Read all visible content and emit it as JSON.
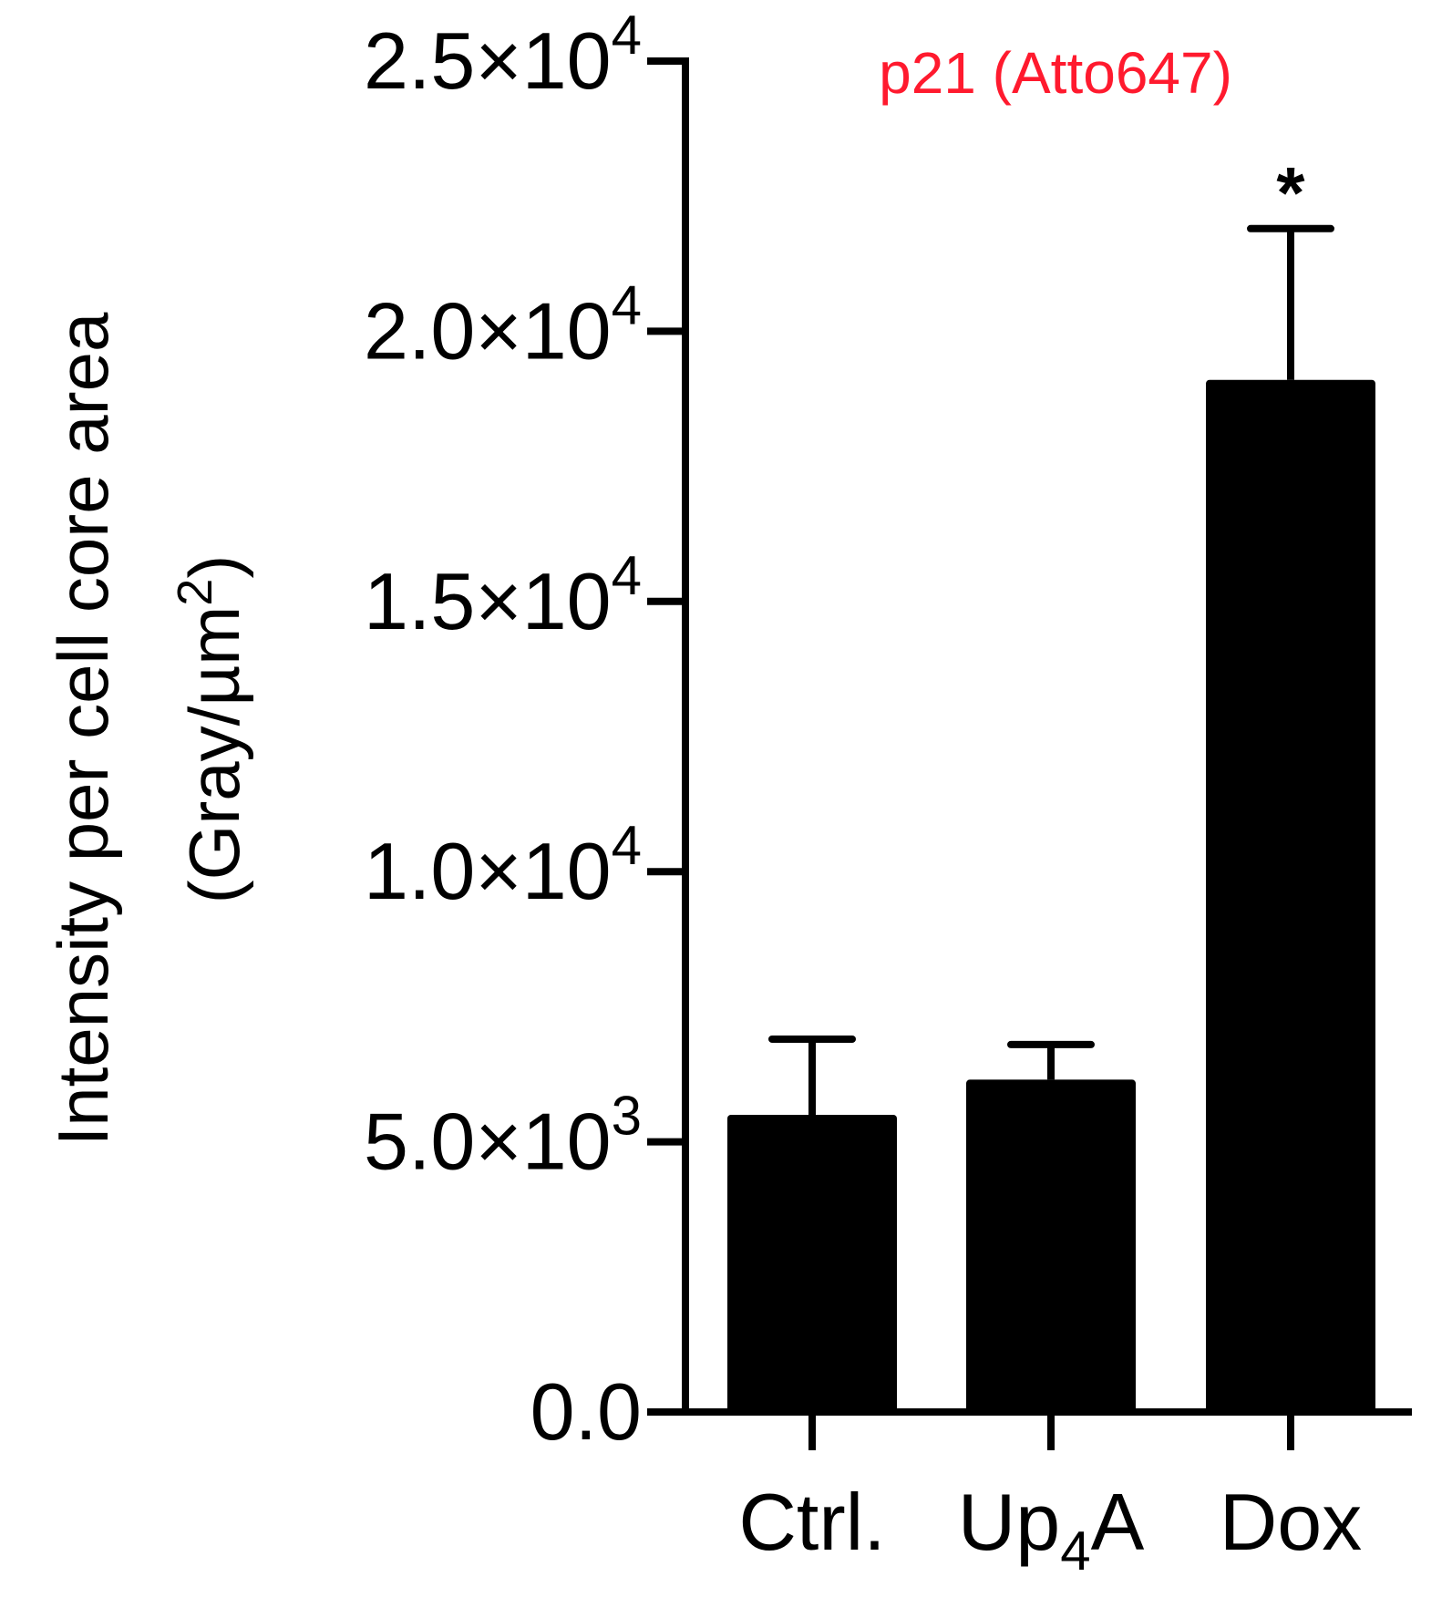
{
  "chart_data": {
    "type": "bar",
    "title": "p21 (Atto647)",
    "title_color": "#ff1a2e",
    "bar_color": "#000000",
    "categories": [
      {
        "base": "Ctrl.",
        "sub": "",
        "tail": ""
      },
      {
        "base": "Up",
        "sub": "4",
        "tail": "A"
      },
      {
        "base": "Dox",
        "sub": "",
        "tail": ""
      }
    ],
    "values": [
      5500,
      6150,
      19100
    ],
    "errors": [
      1400,
      650,
      2800
    ],
    "annotations": [
      "",
      "",
      "*"
    ],
    "ylim": [
      0,
      25000
    ],
    "yticks": [
      {
        "value": 0,
        "mant": "0.0",
        "exp": ""
      },
      {
        "value": 5000,
        "mant": "5.0×10",
        "exp": "3"
      },
      {
        "value": 10000,
        "mant": "1.0×10",
        "exp": "4"
      },
      {
        "value": 15000,
        "mant": "1.5×10",
        "exp": "4"
      },
      {
        "value": 20000,
        "mant": "2.0×10",
        "exp": "4"
      },
      {
        "value": 25000,
        "mant": "2.5×10",
        "exp": "4"
      }
    ],
    "ylabel": {
      "line1": "Intensity per cell core area",
      "line2_base": "(Gray/µm",
      "line2_sup": "2",
      "line2_tail": ")"
    },
    "xlabel": "",
    "grid": false,
    "legend": "none"
  }
}
